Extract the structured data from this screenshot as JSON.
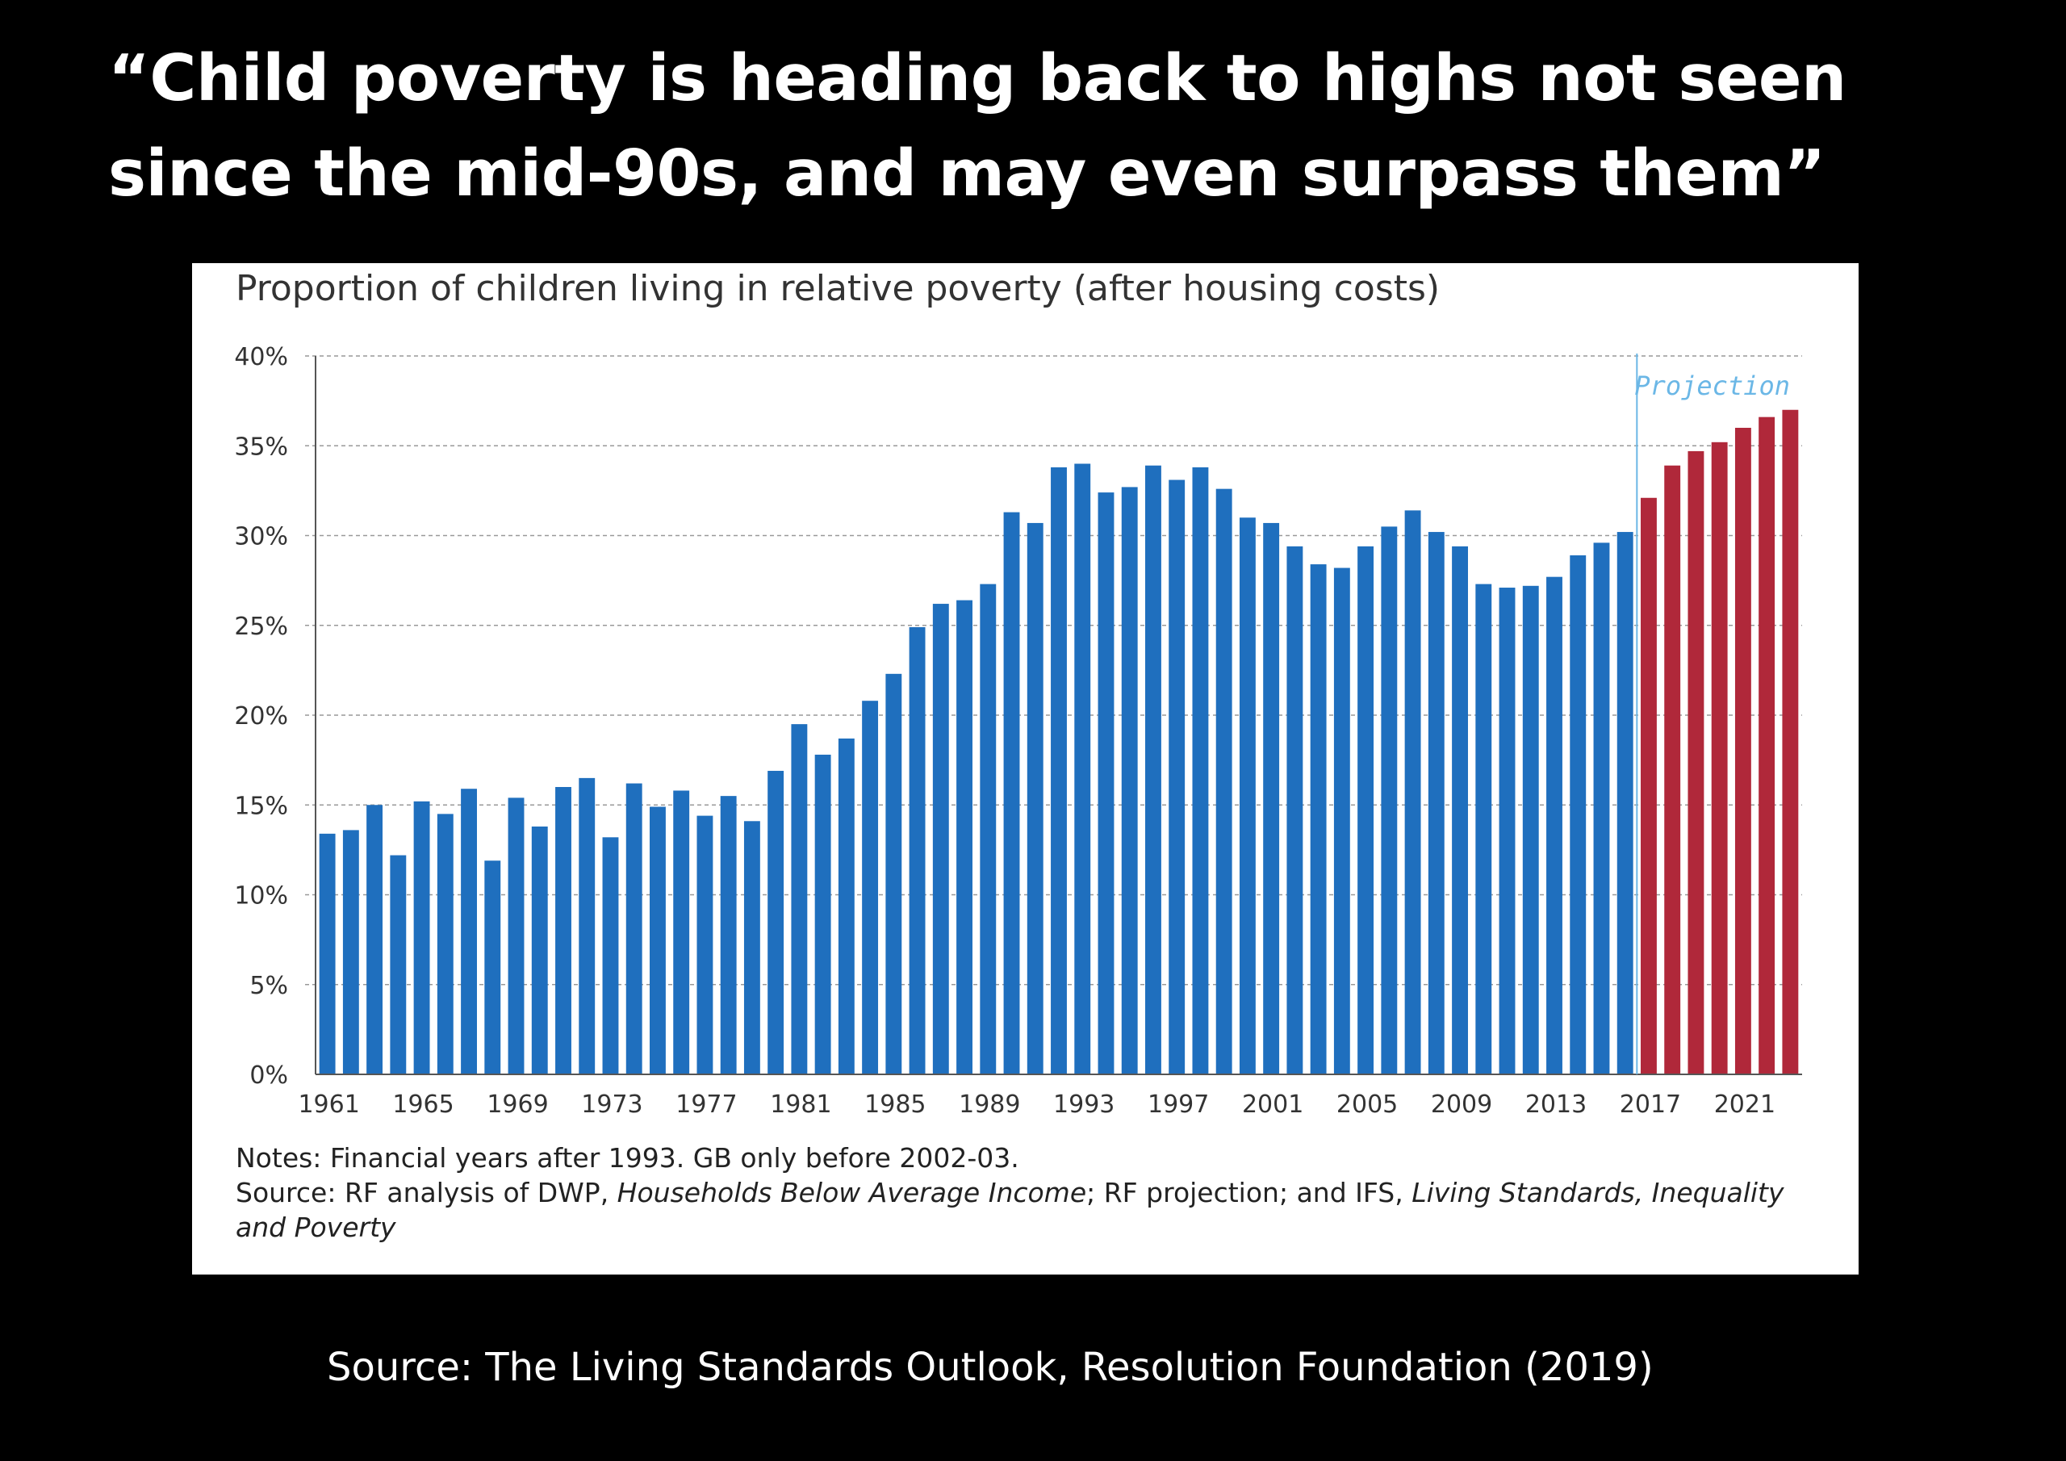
{
  "slide": {
    "headline": "“Child poverty is heading back to highs not seen since the mid-90s, and may even surpass them”",
    "footer_source": "Source: The Living Standards Outlook, Resolution Foundation (2019)"
  },
  "notes": {
    "line1": "Notes: Financial years after 1993. GB only before 2002-03.",
    "source_prefix": "Source: RF analysis of DWP, ",
    "source_italic1": "Households Below Average Income",
    "source_mid": "; RF projection; and IFS, ",
    "source_italic2": "Living Standards, Inequality and Poverty"
  },
  "colors": {
    "actual": "#1f6fbe",
    "projection": "#b0283a",
    "projection_label": "#6bb7e6",
    "grid": "#999999"
  },
  "chart_data": {
    "type": "bar",
    "title": "Proportion of children living in relative poverty (after housing costs)",
    "xlabel": "",
    "ylabel": "",
    "ylim": [
      0,
      40
    ],
    "yticks": [
      "0%",
      "5%",
      "10%",
      "15%",
      "20%",
      "25%",
      "30%",
      "35%",
      "40%"
    ],
    "ytick_values": [
      0,
      5,
      10,
      15,
      20,
      25,
      30,
      35,
      40
    ],
    "xtick_labels": [
      "1961",
      "1965",
      "1969",
      "1973",
      "1977",
      "1981",
      "1985",
      "1989",
      "1993",
      "1997",
      "2001",
      "2005",
      "2009",
      "2013",
      "2017",
      "2021"
    ],
    "grid": "horizontal dashed",
    "annotation": "Projection",
    "categories": [
      "1961",
      "1962",
      "1963",
      "1964",
      "1965",
      "1966",
      "1967",
      "1968",
      "1969",
      "1970",
      "1971",
      "1972",
      "1973",
      "1974",
      "1975",
      "1976",
      "1977",
      "1978",
      "1979",
      "1980",
      "1981",
      "1982",
      "1983",
      "1984",
      "1985",
      "1986",
      "1987",
      "1988",
      "1989",
      "1990",
      "1991",
      "1992",
      "1993",
      "1994",
      "1995",
      "1996",
      "1997",
      "1998",
      "1999",
      "2000",
      "2001",
      "2002",
      "2003",
      "2004",
      "2005",
      "2006",
      "2007",
      "2008",
      "2009",
      "2010",
      "2011",
      "2012",
      "2013",
      "2014",
      "2015",
      "2016",
      "2017",
      "2018",
      "2019",
      "2020",
      "2021",
      "2022",
      "2023"
    ],
    "series": [
      {
        "role": "actual",
        "values": [
          13.4,
          13.6,
          15.0,
          12.2,
          15.2,
          14.5,
          15.9,
          11.9,
          15.4,
          13.8,
          16.0,
          16.5,
          13.2,
          16.2,
          14.9,
          15.8,
          14.4,
          15.5,
          14.1,
          16.9,
          19.5,
          17.8,
          18.7,
          20.8,
          22.3,
          24.9,
          26.2,
          26.4,
          27.3,
          31.3,
          30.7,
          33.8,
          34.0,
          32.4,
          32.7,
          33.9,
          33.1,
          33.8,
          32.6,
          31.0,
          30.7,
          29.4,
          28.4,
          28.2,
          29.4,
          30.5,
          31.4,
          30.2,
          29.4,
          27.3,
          27.1,
          27.2,
          27.7,
          28.9,
          29.6,
          30.2,
          null,
          null,
          null,
          null,
          null,
          null,
          null
        ]
      },
      {
        "role": "projection",
        "values": [
          null,
          null,
          null,
          null,
          null,
          null,
          null,
          null,
          null,
          null,
          null,
          null,
          null,
          null,
          null,
          null,
          null,
          null,
          null,
          null,
          null,
          null,
          null,
          null,
          null,
          null,
          null,
          null,
          null,
          null,
          null,
          null,
          null,
          null,
          null,
          null,
          null,
          null,
          null,
          null,
          null,
          null,
          null,
          null,
          null,
          null,
          null,
          null,
          null,
          null,
          null,
          null,
          null,
          null,
          null,
          null,
          32.1,
          33.9,
          34.7,
          35.2,
          36.0,
          36.6,
          37.0
        ]
      }
    ]
  }
}
